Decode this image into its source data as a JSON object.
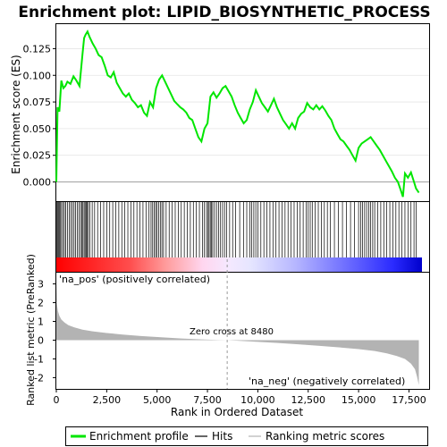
{
  "chart_data": {
    "type": "line",
    "title": "Enrichment plot: LIPID_BIOSYNTHETIC_PROCESS",
    "xlabel": "Rank in Ordered Dataset",
    "top_panel": {
      "ylabel": "Enrichment score (ES)",
      "ylim": [
        -0.018,
        0.148
      ],
      "yticks": [
        "0.000",
        "0.025",
        "0.050",
        "0.075",
        "0.100",
        "0.125"
      ],
      "ytick_values": [
        0,
        0.025,
        0.05,
        0.075,
        0.1,
        0.125
      ],
      "series_name": "Enrichment profile",
      "x": [
        0,
        60,
        150,
        250,
        350,
        450,
        550,
        700,
        850,
        1000,
        1150,
        1300,
        1380,
        1450,
        1550,
        1650,
        1800,
        1950,
        2100,
        2250,
        2400,
        2550,
        2700,
        2850,
        3000,
        3150,
        3300,
        3450,
        3600,
        3750,
        3900,
        4050,
        4200,
        4350,
        4500,
        4650,
        4800,
        4950,
        5100,
        5250,
        5400,
        5550,
        5700,
        5850,
        6000,
        6150,
        6300,
        6450,
        6600,
        6750,
        6900,
        7050,
        7200,
        7350,
        7500,
        7650,
        7800,
        7950,
        8100,
        8250,
        8400,
        8550,
        8700,
        8850,
        9000,
        9150,
        9300,
        9450,
        9600,
        9750,
        9900,
        10050,
        10200,
        10350,
        10500,
        10650,
        10800,
        10950,
        11100,
        11250,
        11400,
        11550,
        11700,
        11850,
        12000,
        12150,
        12300,
        12450,
        12600,
        12750,
        12900,
        13050,
        13200,
        13350,
        13500,
        13650,
        13800,
        13950,
        14100,
        14250,
        14400,
        14550,
        14700,
        14850,
        15000,
        15150,
        15300,
        15450,
        15600,
        15750,
        15900,
        16050,
        16200,
        16350,
        16500,
        16650,
        16800,
        16950,
        17100,
        17200,
        17300,
        17450,
        17600,
        17750,
        17850,
        17990
      ],
      "es": [
        0.0,
        0.07,
        0.066,
        0.095,
        0.088,
        0.09,
        0.094,
        0.092,
        0.099,
        0.095,
        0.09,
        0.12,
        0.135,
        0.138,
        0.141,
        0.136,
        0.13,
        0.125,
        0.119,
        0.117,
        0.109,
        0.1,
        0.098,
        0.103,
        0.093,
        0.088,
        0.083,
        0.08,
        0.083,
        0.077,
        0.074,
        0.07,
        0.072,
        0.065,
        0.062,
        0.075,
        0.07,
        0.088,
        0.096,
        0.1,
        0.094,
        0.088,
        0.082,
        0.076,
        0.073,
        0.07,
        0.068,
        0.065,
        0.06,
        0.058,
        0.05,
        0.042,
        0.038,
        0.05,
        0.055,
        0.08,
        0.084,
        0.079,
        0.083,
        0.088,
        0.09,
        0.085,
        0.08,
        0.072,
        0.065,
        0.06,
        0.055,
        0.058,
        0.068,
        0.075,
        0.086,
        0.08,
        0.074,
        0.07,
        0.066,
        0.072,
        0.078,
        0.07,
        0.064,
        0.058,
        0.054,
        0.05,
        0.055,
        0.05,
        0.06,
        0.064,
        0.066,
        0.074,
        0.07,
        0.068,
        0.072,
        0.068,
        0.071,
        0.067,
        0.062,
        0.058,
        0.05,
        0.045,
        0.04,
        0.038,
        0.034,
        0.03,
        0.025,
        0.02,
        0.032,
        0.036,
        0.038,
        0.04,
        0.042,
        0.038,
        0.034,
        0.03,
        0.025,
        0.02,
        0.015,
        0.01,
        0.004,
        0.0,
        -0.008,
        -0.014,
        0.008,
        0.004,
        0.009,
        0.0,
        -0.006,
        -0.01
      ]
    },
    "hits_panel": {
      "series_name": "Hits",
      "hit_ranks": [
        20,
        60,
        110,
        160,
        210,
        260,
        330,
        400,
        470,
        560,
        640,
        720,
        800,
        880,
        960,
        1040,
        1120,
        1200,
        1260,
        1320,
        1380,
        1430,
        1480,
        1530,
        1590,
        1660,
        1780,
        1900,
        2050,
        2200,
        2350,
        2500,
        2650,
        2800,
        2950,
        3100,
        3250,
        3400,
        3550,
        3700,
        3850,
        4000,
        4150,
        4300,
        4450,
        4600,
        4700,
        4780,
        4860,
        4930,
        5000,
        5080,
        5160,
        5240,
        5320,
        5450,
        5600,
        5750,
        5900,
        6050,
        6200,
        6350,
        6500,
        6650,
        6800,
        6950,
        7100,
        7250,
        7350,
        7450,
        7520,
        7580,
        7640,
        7700,
        7760,
        7850,
        7950,
        8050,
        8150,
        8250,
        8350,
        8450,
        8600,
        8750,
        8900,
        9100,
        9300,
        9450,
        9600,
        9700,
        9800,
        9900,
        10000,
        10150,
        10300,
        10450,
        10600,
        10750,
        10900,
        11050,
        11200,
        11350,
        11500,
        11650,
        11800,
        11950,
        12100,
        12250,
        12400,
        12500,
        12600,
        12700,
        12850,
        13000,
        13150,
        13300,
        13450,
        13600,
        13800,
        14000,
        14200,
        14400,
        14600,
        14800,
        15000,
        15100,
        15200,
        15300,
        15400,
        15500,
        15600,
        15700,
        15800,
        15950,
        16100,
        16250,
        16400,
        16550,
        16700,
        16850,
        17000,
        17150,
        17300,
        17450,
        17600,
        17750,
        17850
      ],
      "band_labels": [
        "'na_pos' (positively correlated)",
        "'na_neg' (negatively correlated)"
      ]
    },
    "bottom_panel": {
      "ylabel": "Ranked list metric (PreRanked)",
      "ylim": [
        -2.6,
        3.6
      ],
      "yticks": [
        "-2",
        "-1",
        "0",
        "1",
        "2",
        "3"
      ],
      "ytick_values": [
        -2,
        -1,
        0,
        1,
        2,
        3
      ],
      "series_name": "Ranking metric scores",
      "zero_cross_label": "Zero cross at 8480",
      "zero_cross": 8480,
      "x": [
        0,
        30,
        80,
        150,
        250,
        400,
        600,
        900,
        1300,
        1800,
        2500,
        3300,
        4200,
        5200,
        6200,
        7200,
        8000,
        8480,
        9000,
        10000,
        11000,
        12000,
        13000,
        14000,
        15000,
        15800,
        16400,
        16900,
        17300,
        17600,
        17800,
        17900,
        17990
      ],
      "metric": [
        3.4,
        1.9,
        1.55,
        1.3,
        1.1,
        0.95,
        0.8,
        0.68,
        0.56,
        0.47,
        0.38,
        0.3,
        0.22,
        0.15,
        0.09,
        0.04,
        0.015,
        0.0,
        -0.03,
        -0.09,
        -0.15,
        -0.22,
        -0.3,
        -0.38,
        -0.48,
        -0.58,
        -0.7,
        -0.85,
        -1.0,
        -1.25,
        -1.55,
        -1.95,
        -2.4
      ]
    },
    "xaxis": {
      "xlim": [
        0,
        18500
      ],
      "xticks": [
        "0",
        "2,500",
        "5,000",
        "7,500",
        "10,000",
        "12,500",
        "15,000",
        "17,500"
      ],
      "xtick_values": [
        0,
        2500,
        5000,
        7500,
        10000,
        12500,
        15000,
        17500
      ]
    },
    "legend": {
      "placement": "bottom",
      "items": [
        "Enrichment profile",
        "Hits",
        "Ranking metric scores"
      ]
    },
    "colors": {
      "es_line": "#00e600",
      "hits": "#000000",
      "metric_fill": "#b3b3b3",
      "zero_line": "#999999",
      "pos_band": "#ff0000",
      "neg_band": "#0000ff",
      "pos_text": "#cc0000",
      "neg_text": "#0000cc"
    }
  }
}
